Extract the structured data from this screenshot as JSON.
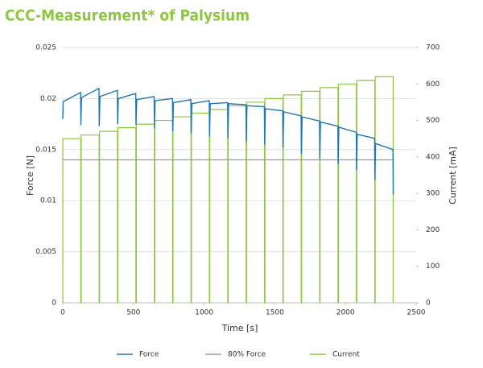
{
  "chart_data": {
    "type": "line",
    "title": "CCC-Measurement* of Palysium",
    "x_label": "Time [s]",
    "y_label": "Force [N]",
    "y2_label": "Current [mA]",
    "xlim": [
      0,
      2500
    ],
    "xticks": [
      0,
      500,
      1000,
      1500,
      2000,
      2500
    ],
    "ylim": [
      0,
      0.025
    ],
    "yticks": [
      0,
      0.005,
      0.01,
      0.015,
      0.02,
      0.025
    ],
    "y2lim": [
      0,
      700
    ],
    "y2ticks": [
      0,
      100,
      200,
      300,
      400,
      500,
      600,
      700
    ],
    "grid": true,
    "legend": "bottom",
    "series": [
      {
        "name": "Force",
        "color": "#1f77b4",
        "x": [
          0,
          3,
          126,
          128,
          133,
          256,
          258,
          263,
          386,
          388,
          393,
          516,
          518,
          523,
          646,
          648,
          653,
          776,
          778,
          783,
          906,
          908,
          913,
          1036,
          1038,
          1043,
          1166,
          1168,
          1173,
          1296,
          1298,
          1303,
          1426,
          1428,
          1433,
          1556,
          1558,
          1563,
          1686,
          1688,
          1693,
          1816,
          1818,
          1823,
          1946,
          1948,
          1953,
          2076,
          2078,
          2083,
          2206,
          2208,
          2213,
          2336,
          2338
        ],
        "values": [
          0.018,
          0.0197,
          0.0206,
          0.0174,
          0.0201,
          0.021,
          0.0173,
          0.0202,
          0.0208,
          0.0175,
          0.02,
          0.0205,
          0.0174,
          0.0199,
          0.0202,
          0.0171,
          0.0198,
          0.02,
          0.0168,
          0.0196,
          0.0199,
          0.0166,
          0.0195,
          0.0198,
          0.0163,
          0.0195,
          0.0196,
          0.0161,
          0.0195,
          0.0194,
          0.0158,
          0.0193,
          0.0192,
          0.0155,
          0.019,
          0.0188,
          0.0152,
          0.0187,
          0.0183,
          0.0146,
          0.0182,
          0.0178,
          0.0141,
          0.0177,
          0.0173,
          0.0136,
          0.0172,
          0.0167,
          0.013,
          0.0165,
          0.0161,
          0.012,
          0.0156,
          0.015,
          0.0106
        ]
      },
      {
        "name": "80% Force",
        "color": "#999999",
        "x": [
          0,
          2338
        ],
        "values": [
          0.014,
          0.014
        ]
      },
      {
        "name": "Current",
        "color": "#8dc63f",
        "axis": "y2",
        "x": [
          0,
          0,
          127,
          127,
          130,
          130,
          257,
          257,
          260,
          260,
          387,
          387,
          390,
          390,
          517,
          517,
          520,
          520,
          647,
          647,
          650,
          650,
          777,
          777,
          780,
          780,
          907,
          907,
          910,
          910,
          1037,
          1037,
          1040,
          1040,
          1167,
          1167,
          1170,
          1170,
          1297,
          1297,
          1300,
          1300,
          1427,
          1427,
          1430,
          1430,
          1557,
          1557,
          1560,
          1560,
          1687,
          1687,
          1690,
          1690,
          1817,
          1817,
          1820,
          1820,
          1947,
          1947,
          1950,
          1950,
          2077,
          2077,
          2080,
          2080,
          2207,
          2207,
          2210,
          2210,
          2337,
          2337
        ],
        "values": [
          0,
          450,
          450,
          0,
          0,
          460,
          460,
          0,
          0,
          470,
          470,
          0,
          0,
          480,
          480,
          0,
          0,
          490,
          490,
          0,
          0,
          500,
          500,
          0,
          0,
          510,
          510,
          0,
          0,
          520,
          520,
          0,
          0,
          530,
          530,
          0,
          0,
          540,
          540,
          0,
          0,
          550,
          550,
          0,
          0,
          560,
          560,
          0,
          0,
          570,
          570,
          0,
          0,
          580,
          580,
          0,
          0,
          590,
          590,
          0,
          0,
          600,
          600,
          0,
          0,
          610,
          610,
          0,
          0,
          620,
          620,
          0
        ]
      }
    ]
  }
}
